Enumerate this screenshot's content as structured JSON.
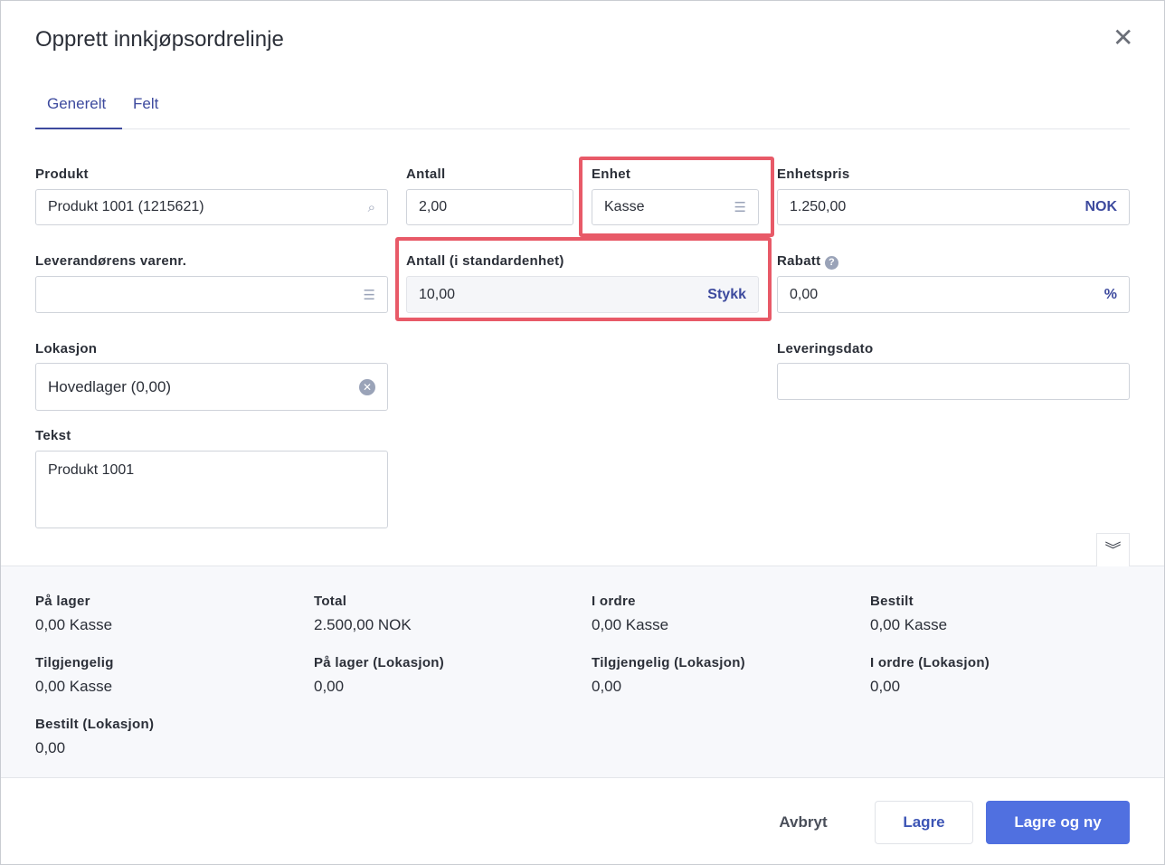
{
  "dialog": {
    "title": "Opprett innkjøpsordrelinje",
    "close_icon": "close-icon"
  },
  "tabs": [
    {
      "label": "Generelt",
      "active": true
    },
    {
      "label": "Felt",
      "active": false
    }
  ],
  "form": {
    "produkt": {
      "label": "Produkt",
      "value": "Produkt 1001 (1215621)",
      "icon": "search-icon"
    },
    "antall": {
      "label": "Antall",
      "value": "2,00"
    },
    "enhet": {
      "label": "Enhet",
      "value": "Kasse",
      "icon": "list-dropdown-icon"
    },
    "enhetspris": {
      "label": "Enhetspris",
      "value": "1.250,00",
      "suffix": "NOK"
    },
    "leverandor": {
      "label": "Leverandørens varenr.",
      "value": "",
      "icon": "list-dropdown-icon"
    },
    "antall_std": {
      "label": "Antall (i standardenhet)",
      "value": "10,00",
      "suffix": "Stykk"
    },
    "rabatt": {
      "label": "Rabatt",
      "value": "0,00",
      "suffix": "%",
      "icon": "help-icon"
    },
    "lokasjon": {
      "label": "Lokasjon",
      "value": "Hovedlager (0,00)",
      "icon": "clear-icon"
    },
    "leveringsdato": {
      "label": "Leveringsdato",
      "value": ""
    },
    "tekst": {
      "label": "Tekst",
      "value": "Produkt 1001"
    }
  },
  "highlight_color": "#e85a68",
  "stats": [
    {
      "label": "På lager",
      "value": "0,00 Kasse"
    },
    {
      "label": "Total",
      "value": "2.500,00 NOK"
    },
    {
      "label": "I ordre",
      "value": "0,00 Kasse"
    },
    {
      "label": "Bestilt",
      "value": "0,00 Kasse"
    },
    {
      "label": "Tilgjengelig",
      "value": "0,00 Kasse"
    },
    {
      "label": "På lager (Lokasjon)",
      "value": "0,00"
    },
    {
      "label": "Tilgjengelig (Lokasjon)",
      "value": "0,00"
    },
    {
      "label": "I ordre (Lokasjon)",
      "value": "0,00"
    },
    {
      "label": "Bestilt (Lokasjon)",
      "value": "0,00"
    }
  ],
  "footer": {
    "cancel": "Avbryt",
    "save": "Lagre",
    "save_new": "Lagre og ny",
    "primary_color": "#5070e0"
  }
}
